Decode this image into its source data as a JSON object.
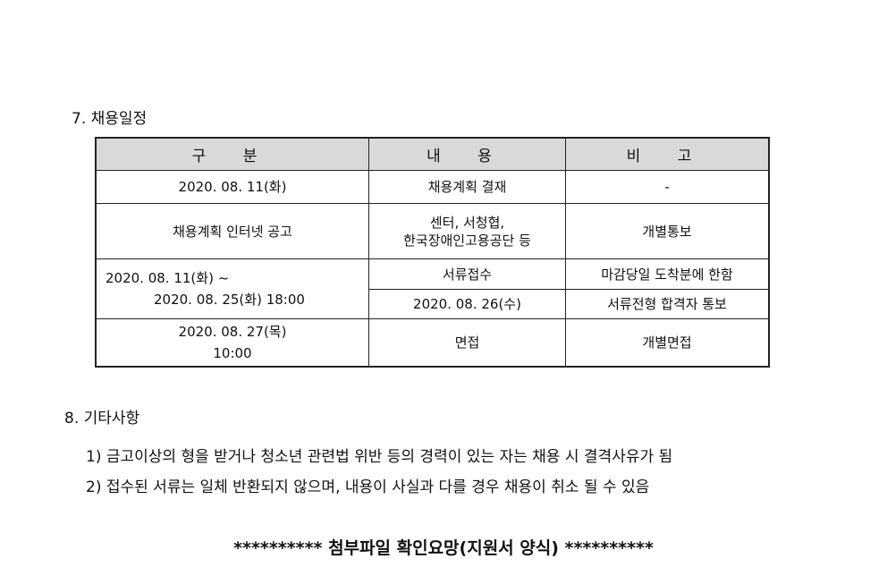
{
  "section7": {
    "title": "7. 채용일정",
    "headers": [
      "구 분",
      "내 용",
      "비 고"
    ],
    "rows": [
      [
        "2020. 08. 11(화)",
        "채용계획 결재",
        "-"
      ],
      [
        "채용계획 인터넷 공고",
        "센터, 서청협,",
        "한국장애인고용공단 등",
        "개별통보"
      ],
      [
        "2020. 08. 11(화) ~",
        "2020. 08. 25(화) 18:00",
        "서류접수",
        "마감당일 도착분에 한함"
      ],
      [
        "2020. 08. 26(수)",
        "서류전형 합격자 통보"
      ],
      [
        "2020. 08. 27(목)",
        "10:00",
        "면접",
        "개별면접"
      ]
    ]
  },
  "section8": {
    "title": "8. 기타사항",
    "items": [
      "1) 금고이상의 형을 받거나 청소년 관련법 위반 등의 경력이 있는 자는 채용 시 결격사유가 됨",
      "2) 접수된 서류는 일체 반환되지 않으며, 내용이 사실과 다를 경우 채용이 취소 될 수 있음"
    ]
  },
  "footer": "********** 첨부파일 확인요망(지원서 양식) **********"
}
